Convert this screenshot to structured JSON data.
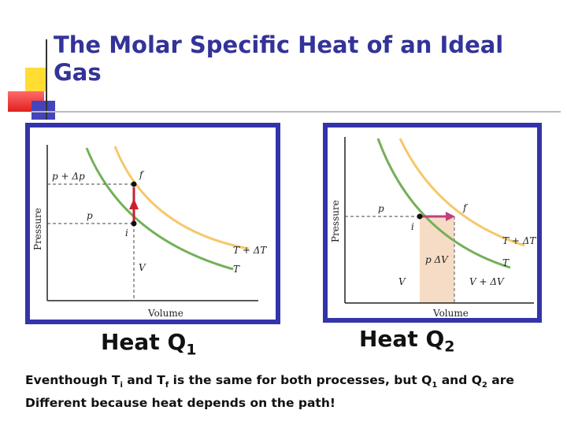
{
  "title": "The Molar Specific Heat of an Ideal Gas",
  "colors": {
    "title": "#333399",
    "frame": "#3333aa",
    "isotherm_hot": "#f5c86a",
    "isotherm_cold": "#74b05a",
    "path_vertical": "#cc1f2f",
    "path_horizontal": "#c04080",
    "work_area": "#f6dcc4"
  },
  "left_diagram": {
    "x_axis": "Volume",
    "y_axis": "Pressure",
    "p_plus_dp": "p + Δp",
    "p": "p",
    "V": "V",
    "f": "f",
    "i": "i",
    "T_plus_dT": "T + ΔT",
    "T": "T"
  },
  "right_diagram": {
    "x_axis": "Volume",
    "y_axis": "Pressure",
    "p": "p",
    "f": "f",
    "i": "i",
    "area": "p ΔV",
    "V": "V",
    "V_plus_dV": "V + ΔV",
    "T_plus_dT": "T + ΔT",
    "T": "T"
  },
  "heat_left": {
    "text": "Heat Q",
    "sub": "1"
  },
  "heat_right": {
    "text": "Heat Q",
    "sub": "2"
  },
  "caption": {
    "part1": "Eventhough T",
    "sub_i": "i",
    "part2": " and T",
    "sub_f": "f",
    "part3": " is the same for both processes, but Q",
    "sub_1": "1",
    "part4": " and Q",
    "sub_2": "2",
    "part5": " are Different because heat depends on the path!"
  }
}
